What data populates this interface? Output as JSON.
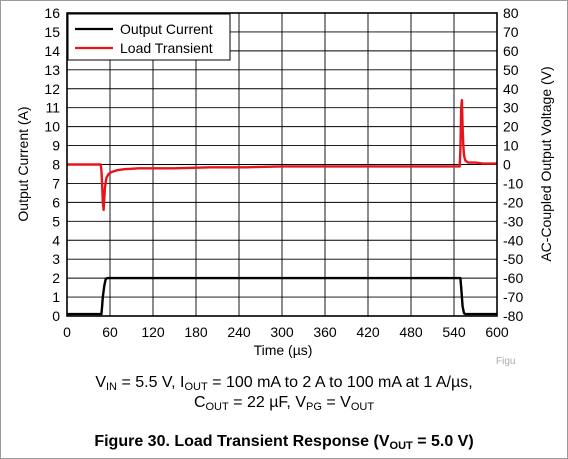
{
  "chart_data": {
    "type": "line",
    "xlabel": "Time (µs)",
    "ylabel_left": "Output Current (A)",
    "ylabel_right": "AC-Coupled Output Voltage (V)",
    "xlim": [
      0,
      600
    ],
    "ylim_left": [
      0,
      16
    ],
    "ylim_right": [
      -80,
      80
    ],
    "x_ticks": [
      "0",
      "60",
      "120",
      "180",
      "240",
      "300",
      "360",
      "420",
      "480",
      "540",
      "600"
    ],
    "y_left_ticks": [
      "0",
      "1",
      "2",
      "3",
      "4",
      "5",
      "6",
      "7",
      "8",
      "9",
      "10",
      "11",
      "12",
      "13",
      "14",
      "15",
      "16"
    ],
    "y_right_ticks": [
      "-80",
      "-70",
      "-60",
      "-50",
      "-40",
      "-30",
      "-20",
      "-10",
      "0",
      "10",
      "20",
      "30",
      "40",
      "50",
      "60",
      "70",
      "80"
    ],
    "grid": true,
    "legend_position": "top-left",
    "series": [
      {
        "name": "Output Current",
        "axis": "left",
        "color": "#000000",
        "x": [
          0,
          48,
          49,
          50,
          52,
          54,
          56,
          100,
          200,
          300,
          400,
          500,
          549,
          550,
          552,
          554,
          556,
          600
        ],
        "y": [
          0.1,
          0.1,
          0.5,
          1.0,
          1.6,
          1.95,
          2.0,
          2.0,
          2.0,
          2.0,
          2.0,
          2.0,
          2.0,
          1.5,
          0.5,
          0.15,
          0.1,
          0.1
        ]
      },
      {
        "name": "Load Transient",
        "axis": "right",
        "color": "#e8141b",
        "x": [
          0,
          40,
          47,
          48,
          49,
          50,
          51,
          52,
          53,
          55,
          58,
          62,
          70,
          80,
          100,
          150,
          200,
          250,
          300,
          350,
          400,
          450,
          500,
          540,
          548,
          549,
          550,
          551,
          552,
          553,
          554,
          555,
          556,
          560,
          570,
          580,
          600
        ],
        "y": [
          0,
          0,
          0,
          -3,
          -10,
          -20,
          -24,
          -18,
          -12,
          -7,
          -5,
          -4,
          -3,
          -2.5,
          -2,
          -2,
          -1.5,
          -1.5,
          -1,
          -1,
          -1,
          -1,
          -1,
          -1,
          -1,
          8,
          30,
          34,
          20,
          10,
          5,
          3,
          2,
          1,
          1,
          0.5,
          0.5
        ]
      }
    ]
  },
  "watermark": "Figu",
  "caption": {
    "line1": {
      "v": "V",
      "v_sub": "IN",
      "v_rest": " = 5.5 V, I",
      "i_sub": "OUT",
      "i_rest": " = 100 mA to 2 A to 100 mA at 1 A/µs,"
    },
    "line2": {
      "c": "C",
      "c_sub": "OUT",
      "c_rest": " = 22 µF, V",
      "pg_sub": "PG",
      "mid": " = V",
      "out_sub": "OUT"
    }
  },
  "figure_title": {
    "pre": "Figure 30. Load Transient Response (V",
    "sub": "OUT",
    "post": " = 5.0 V)"
  }
}
